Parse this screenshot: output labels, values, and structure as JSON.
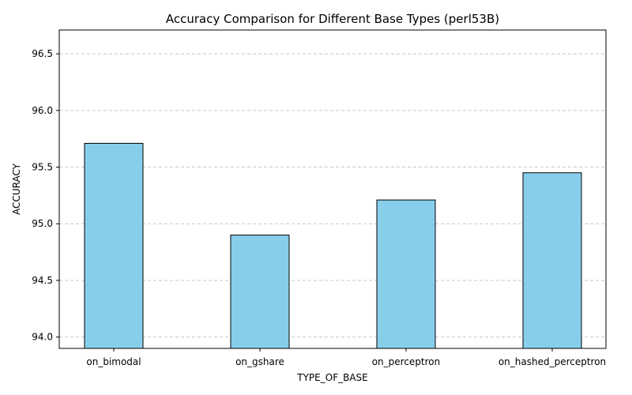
{
  "chart_data": {
    "type": "bar",
    "title": "Accuracy Comparison for Different Base Types (perl53B)",
    "xlabel": "TYPE_OF_BASE",
    "ylabel": "ACCURACY",
    "categories": [
      "on_bimodal",
      "on_gshare",
      "on_perceptron",
      "on_hashed_perceptron"
    ],
    "values": [
      95.71,
      94.9,
      95.21,
      95.45
    ],
    "ylim": [
      93.9,
      96.71
    ],
    "yticks": [
      94.0,
      94.5,
      95.0,
      95.5,
      96.0,
      96.5
    ],
    "ytick_labels": [
      "94.0",
      "94.5",
      "95.0",
      "95.5",
      "96.0",
      "96.5"
    ],
    "grid": "y-dashed",
    "bar_color": "#87ceeb",
    "bar_edge_color": "#000000",
    "grid_color": "#c8c8c8"
  }
}
